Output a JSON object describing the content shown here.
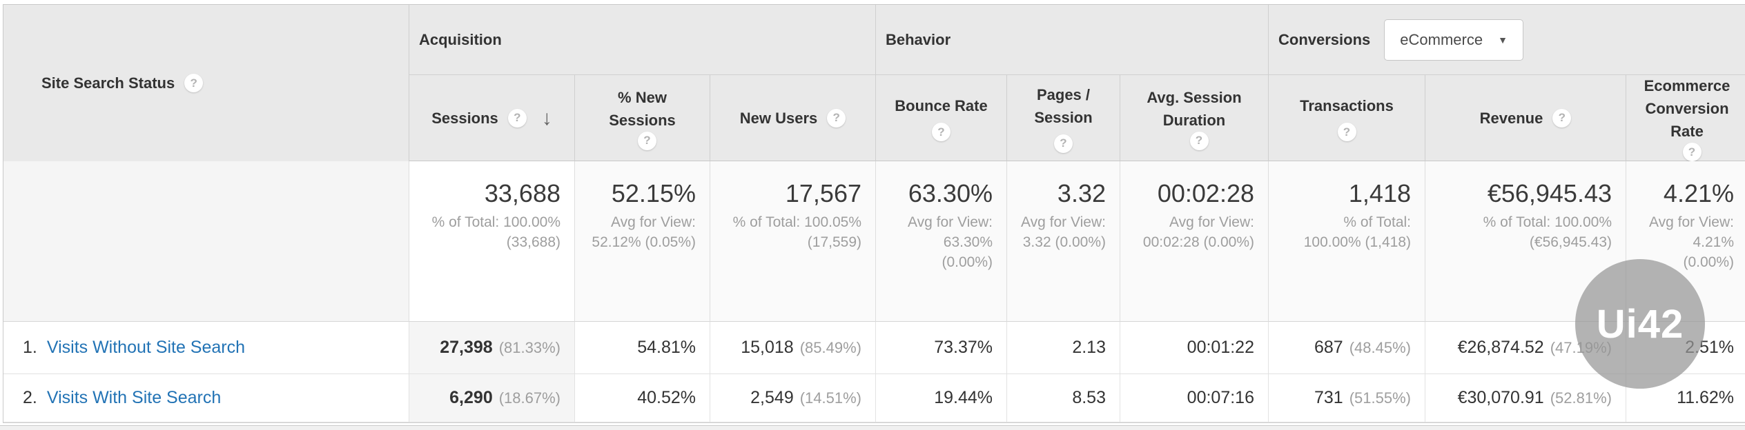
{
  "colors": {
    "header_bg": "#e9e9e9",
    "link_blue": "#2273b5",
    "muted_gray": "#9e9e9e",
    "sorted_col_bg": "#f5f5f5",
    "watermark_gray": "#969696"
  },
  "icons": {
    "help_glyph": "?",
    "sort_desc_glyph": "↓",
    "dropdown_caret_glyph": "▼"
  },
  "header": {
    "dimension_label": "Site Search Status",
    "groups": {
      "acquisition": "Acquisition",
      "behavior": "Behavior",
      "conversions": "Conversions"
    },
    "conversions_selector": "eCommerce",
    "columns": {
      "sessions": "Sessions",
      "pct_new_sessions": "% New Sessions",
      "new_users": "New Users",
      "bounce_rate": "Bounce Rate",
      "pages_per_session": "Pages / Session",
      "avg_session_duration": "Avg. Session Duration",
      "transactions": "Transactions",
      "revenue": "Revenue",
      "ecommerce_conversion_rate": "Ecommerce Conversion Rate"
    }
  },
  "totals": {
    "sessions": {
      "value": "33,688",
      "sub": "% of Total: 100.00% (33,688)"
    },
    "pct_new_sessions": {
      "value": "52.15%",
      "sub": "Avg for View: 52.12% (0.05%)"
    },
    "new_users": {
      "value": "17,567",
      "sub": "% of Total: 100.05% (17,559)"
    },
    "bounce_rate": {
      "value": "63.30%",
      "sub": "Avg for View: 63.30% (0.00%)"
    },
    "pages_per_session": {
      "value": "3.32",
      "sub": "Avg for View: 3.32 (0.00%)"
    },
    "avg_session_duration": {
      "value": "00:02:28",
      "sub": "Avg for View: 00:02:28 (0.00%)"
    },
    "transactions": {
      "value": "1,418",
      "sub": "% of Total: 100.00% (1,418)"
    },
    "revenue": {
      "value": "€56,945.43",
      "sub": "% of Total: 100.00% (€56,945.43)"
    },
    "ecommerce_conversion_rate": {
      "value": "4.21%",
      "sub": "Avg for View: 4.21% (0.00%)"
    }
  },
  "rows": [
    {
      "index": "1.",
      "label": "Visits Without Site Search",
      "sessions": "27,398",
      "sessions_share": "(81.33%)",
      "pct_new_sessions": "54.81%",
      "new_users": "15,018",
      "new_users_share": "(85.49%)",
      "bounce_rate": "73.37%",
      "pages_per_session": "2.13",
      "avg_session_duration": "00:01:22",
      "transactions": "687",
      "transactions_share": "(48.45%)",
      "revenue": "€26,874.52",
      "revenue_share": "(47.19%)",
      "ecommerce_conversion_rate": "2.51%"
    },
    {
      "index": "2.",
      "label": "Visits With Site Search",
      "sessions": "6,290",
      "sessions_share": "(18.67%)",
      "pct_new_sessions": "40.52%",
      "new_users": "2,549",
      "new_users_share": "(14.51%)",
      "bounce_rate": "19.44%",
      "pages_per_session": "8.53",
      "avg_session_duration": "00:07:16",
      "transactions": "731",
      "transactions_share": "(51.55%)",
      "revenue": "€30,070.91",
      "revenue_share": "(52.81%)",
      "ecommerce_conversion_rate": "11.62%"
    }
  ],
  "watermark": {
    "text": "Ui42"
  }
}
